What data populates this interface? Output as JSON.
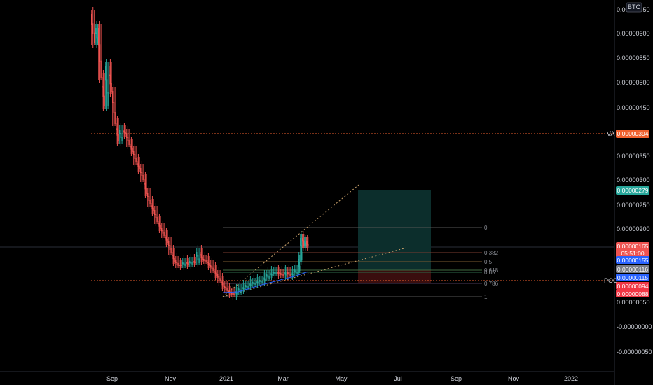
{
  "symbol_badge": "BTC",
  "price_axis": {
    "ticks": [
      "0.00000650",
      "0.00000600",
      "0.00000550",
      "0.00000500",
      "0.00000450",
      "0.00000350",
      "0.00000300",
      "0.00000250",
      "0.00000200",
      "0.00000050",
      "-0.00000000",
      "-0.00000050"
    ]
  },
  "time_axis": {
    "ticks": [
      "Sep",
      "Nov",
      "2021",
      "Mar",
      "May",
      "Jul",
      "Sep",
      "Nov",
      "2022"
    ]
  },
  "levels": {
    "va": {
      "tag": "VA",
      "price": "0.00000394"
    },
    "poc": {
      "tag": "POC",
      "price": "0.00000094"
    }
  },
  "badges": [
    {
      "label": "0.00000279",
      "color": "#26a69a"
    },
    {
      "label": "0.00000165",
      "sub": "05:51:00",
      "color": "#ef5350"
    },
    {
      "label": "0.00000155",
      "color": "#2962ff"
    },
    {
      "label": "0.00000116",
      "color": "#787b86"
    },
    {
      "label": "0.00000115",
      "color": "#2962ff"
    },
    {
      "label": "0.00000094",
      "color": "#f23645"
    },
    {
      "label": "0.00000088",
      "color": "#f23645"
    }
  ],
  "fib_labels": [
    "0",
    "0.382",
    "0.5",
    "0.618",
    "0.65",
    "0.786",
    "1"
  ],
  "colors": {
    "background": "#000000",
    "level_line": "#f0612e",
    "up_candle": "#26a69a",
    "down_candle": "#ef5350",
    "target_zone": "#0c2e2c",
    "stop_zone": "#3a0e0e",
    "trendline": "#c7a06b"
  }
}
